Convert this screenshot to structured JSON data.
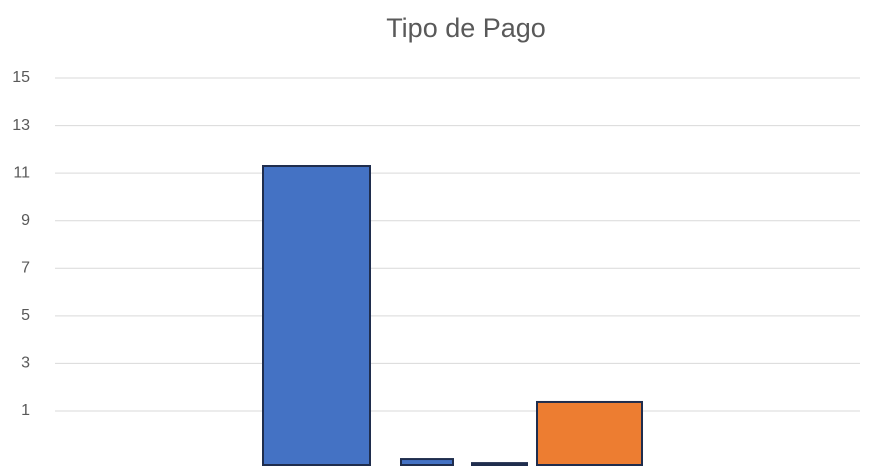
{
  "chart_data": {
    "type": "bar",
    "title": "Tipo de Pago",
    "categories": [
      null,
      null,
      null,
      null
    ],
    "series": [
      {
        "color": "#4472c4",
        "values": [
          11.3,
          -1.02,
          null,
          null
        ]
      },
      {
        "color": "#ed7d31",
        "values": [
          null,
          null,
          -1.19,
          1.38
        ]
      }
    ],
    "ylim": [
      -1.27,
      15
    ],
    "yticks": [
      1,
      3,
      5,
      7,
      9,
      11,
      13,
      15
    ],
    "grid": true
  }
}
